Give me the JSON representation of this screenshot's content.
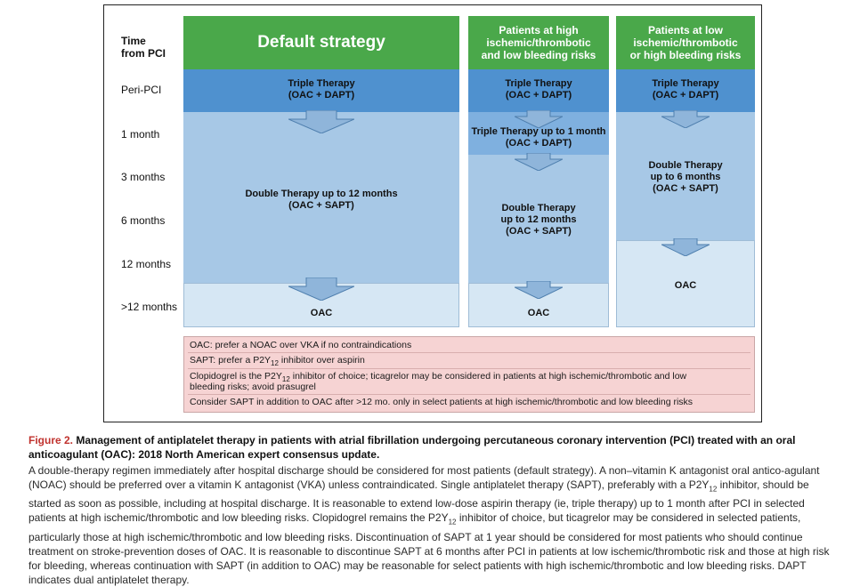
{
  "time_axis": {
    "header": "Time from PCI",
    "header_line1": "Time",
    "header_line2": "from PCI",
    "labels": [
      "Peri-PCI",
      "1 month",
      "3 months",
      "6 months",
      "12 months",
      ">12 months"
    ]
  },
  "columns": {
    "default": {
      "title": "Default strategy",
      "triple": [
        "Triple Therapy",
        "(OAC + DAPT)"
      ],
      "double": [
        "Double Therapy up to 12 months",
        "(OAC + SAPT)"
      ],
      "final": "OAC"
    },
    "high_ischemic": {
      "title_lines": [
        "Patients at high",
        "ischemic/thrombotic",
        "and low bleeding risks"
      ],
      "triple": [
        "Triple Therapy",
        "(OAC + DAPT)"
      ],
      "triple_extended": [
        "Triple Therapy up to 1 month",
        "(OAC + DAPT)"
      ],
      "double": [
        "Double Therapy",
        "up to 12 months",
        "(OAC + SAPT)"
      ],
      "final": "OAC"
    },
    "low_ischemic": {
      "title_lines": [
        "Patients at low",
        "ischemic/thrombotic",
        "or high bleeding risks"
      ],
      "triple": [
        "Triple Therapy",
        "(OAC + DAPT)"
      ],
      "double": [
        "Double Therapy",
        "up to 6 months",
        "(OAC + SAPT)"
      ],
      "final": "OAC"
    }
  },
  "notes": {
    "n1": "OAC: prefer a NOAC over VKA if no contraindications",
    "n2_pre": "SAPT: prefer a P2Y",
    "n2_sub": "12",
    "n2_post": " inhibitor over aspirin",
    "n3_pre": "Clopidogrel is the P2Y",
    "n3_sub": "12",
    "n3_post": " inhibitor of choice; ticagrelor may be considered in patients at high ischemic/thrombotic and low",
    "n3_line2": "bleeding risks; avoid prasugrel",
    "n4": "Consider SAPT in addition to OAC after >12 mo. only in select patients at high ischemic/thrombotic and low bleeding risks"
  },
  "caption": {
    "label": "Figure 2.",
    "title": " Management of antiplatelet therapy in patients with atrial fibrillation undergoing percutaneous coronary intervention (PCI) treated with an oral anticoagulant (OAC): 2018 North American expert consensus update.",
    "body_1": "A double-therapy regimen immediately after hospital discharge should be considered for most patients (default strategy). A non–vitamin K antagonist oral antico-agulant (NOAC) should be preferred over a vitamin K antagonist (VKA) unless contraindicated. Single antiplatelet therapy (SAPT), preferably with a P2Y",
    "body_sub1": "12",
    "body_2": " inhibitor, should be started as soon as possible, including at hospital discharge. It is reasonable to extend low-dose aspirin therapy (ie, triple therapy) up to 1 month after PCI in selected patients at high ischemic/thrombotic and low bleeding risks. Clopidogrel remains the P2Y",
    "body_sub2": "12",
    "body_3": " inhibitor of choice, but ticagrelor may be considered in selected patients, particularly those at high ischemic/thrombotic and low bleeding risks. Discontinuation of SAPT at 1 year should be considered for most patients who should continue treatment on stroke-prevention doses of OAC. It is reasonable to discontinue SAPT at 6 months after PCI in patients at low ischemic/thrombotic risk and those at high risk for bleeding, whereas continuation with SAPT (in addition to OAC) may be reasonable for select patients with high ischemic/thrombotic and low bleeding risks. DAPT indicates dual antiplatelet therapy."
  },
  "colors": {
    "header_green": "#4aa84a",
    "triple_blue": "#4f91cf",
    "double_blue": "#a7c8e6",
    "oac_blue": "#d6e7f4",
    "notes_pink": "#f6d3d3",
    "figure_label_red": "#c0322e"
  }
}
